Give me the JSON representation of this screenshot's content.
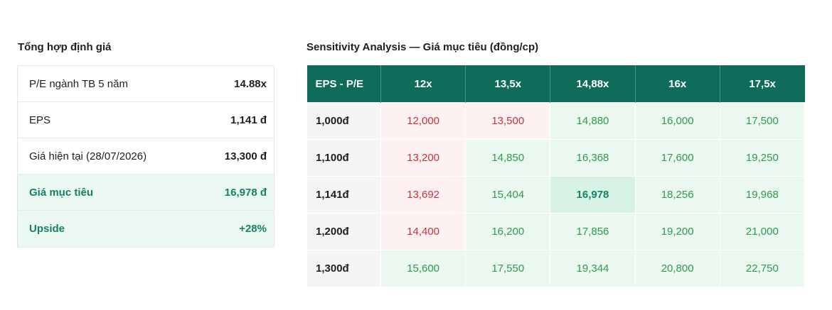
{
  "summary": {
    "title": "Tổng hợp định giá",
    "rows": [
      {
        "label": "P/E ngành TB 5 năm",
        "value": "14.88x"
      },
      {
        "label": "EPS",
        "value": "1,141 đ"
      },
      {
        "label": "Giá hiện tại (28/07/2026)",
        "value": "13,300 đ"
      },
      {
        "label": "Giá mục tiêu",
        "value": "16,978 đ"
      },
      {
        "label": "Upside",
        "value": "+28%"
      }
    ]
  },
  "sensitivity": {
    "title": "Sensitivity Analysis — Giá mục tiêu (đồng/cp)",
    "corner": "EPS - P/E",
    "columns": [
      "12x",
      "13,5x",
      "14,88x",
      "16x",
      "17,5x"
    ],
    "rows": [
      {
        "eps": "1,000đ",
        "values": [
          "12,000",
          "13,500",
          "14,880",
          "16,000",
          "17,500"
        ]
      },
      {
        "eps": "1,100đ",
        "values": [
          "13,200",
          "14,850",
          "16,368",
          "17,600",
          "19,250"
        ]
      },
      {
        "eps": "1,141đ",
        "values": [
          "13,692",
          "15,404",
          "16,978",
          "18,256",
          "19,968"
        ]
      },
      {
        "eps": "1,200đ",
        "values": [
          "14,400",
          "16,200",
          "17,856",
          "19,200",
          "21,000"
        ]
      },
      {
        "eps": "1,300đ",
        "values": [
          "15,600",
          "17,550",
          "19,344",
          "20,800",
          "22,750"
        ]
      }
    ],
    "colors": {
      "header": "#0f6b5a",
      "below_price": "#c6313f",
      "above_price": "#2e9a4e",
      "target": "#17806a"
    }
  }
}
